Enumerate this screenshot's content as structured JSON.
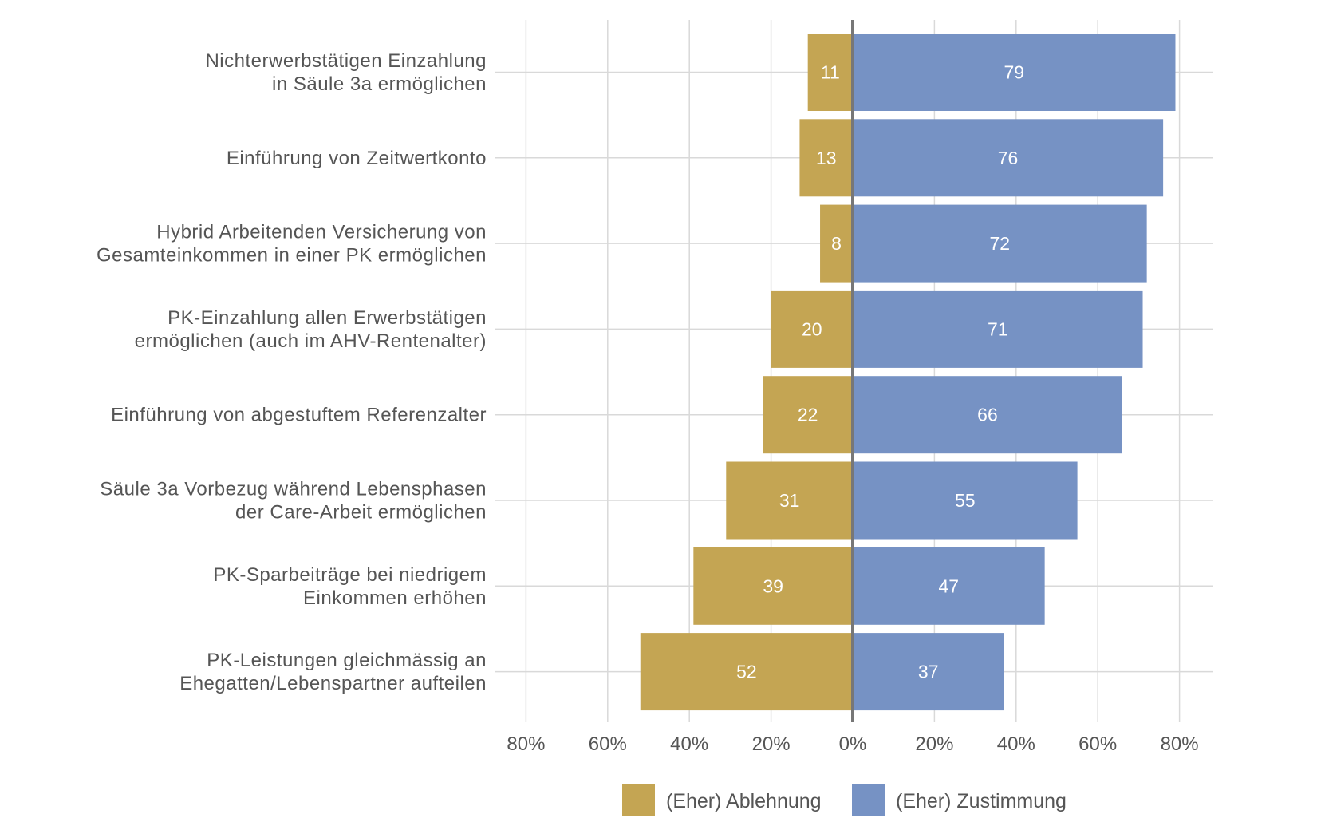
{
  "chart_data": {
    "type": "bar",
    "orientation": "horizontal-diverging",
    "categories": [
      [
        "Nichterwerbstätigen Einzahlung",
        "in Säule 3a ermöglichen"
      ],
      [
        "Einführung von Zeitwertkonto"
      ],
      [
        "Hybrid Arbeitenden Versicherung von",
        "Gesamteinkommen in einer PK ermöglichen"
      ],
      [
        "PK-Einzahlung allen Erwerbstätigen",
        "ermöglichen (auch im AHV-Rentenalter)"
      ],
      [
        "Einführung von abgestuftem Referenzalter"
      ],
      [
        "Säule 3a Vorbezug während Lebensphasen",
        "der Care-Arbeit ermöglichen"
      ],
      [
        "PK-Sparbeiträge bei niedrigem",
        "Einkommen erhöhen"
      ],
      [
        "PK-Leistungen gleichmässig an",
        "Ehegatten/Lebenspartner aufteilen"
      ]
    ],
    "series": [
      {
        "name": "(Eher) Ablehnung",
        "color": "#c4a553",
        "direction": "left",
        "values": [
          11,
          13,
          8,
          20,
          22,
          31,
          39,
          52
        ]
      },
      {
        "name": "(Eher) Zustimmung",
        "color": "#7692c4",
        "direction": "right",
        "values": [
          79,
          76,
          72,
          71,
          66,
          55,
          47,
          37
        ]
      }
    ],
    "xlim": [
      -80,
      80
    ],
    "xticks": [
      -80,
      -60,
      -40,
      -20,
      0,
      20,
      40,
      60,
      80
    ],
    "xtick_labels": [
      "80%",
      "60%",
      "40%",
      "20%",
      "0%",
      "20%",
      "40%",
      "60%",
      "80%"
    ],
    "title": "",
    "xlabel": "",
    "ylabel": "",
    "grid": true,
    "legend_position": "bottom-center"
  }
}
